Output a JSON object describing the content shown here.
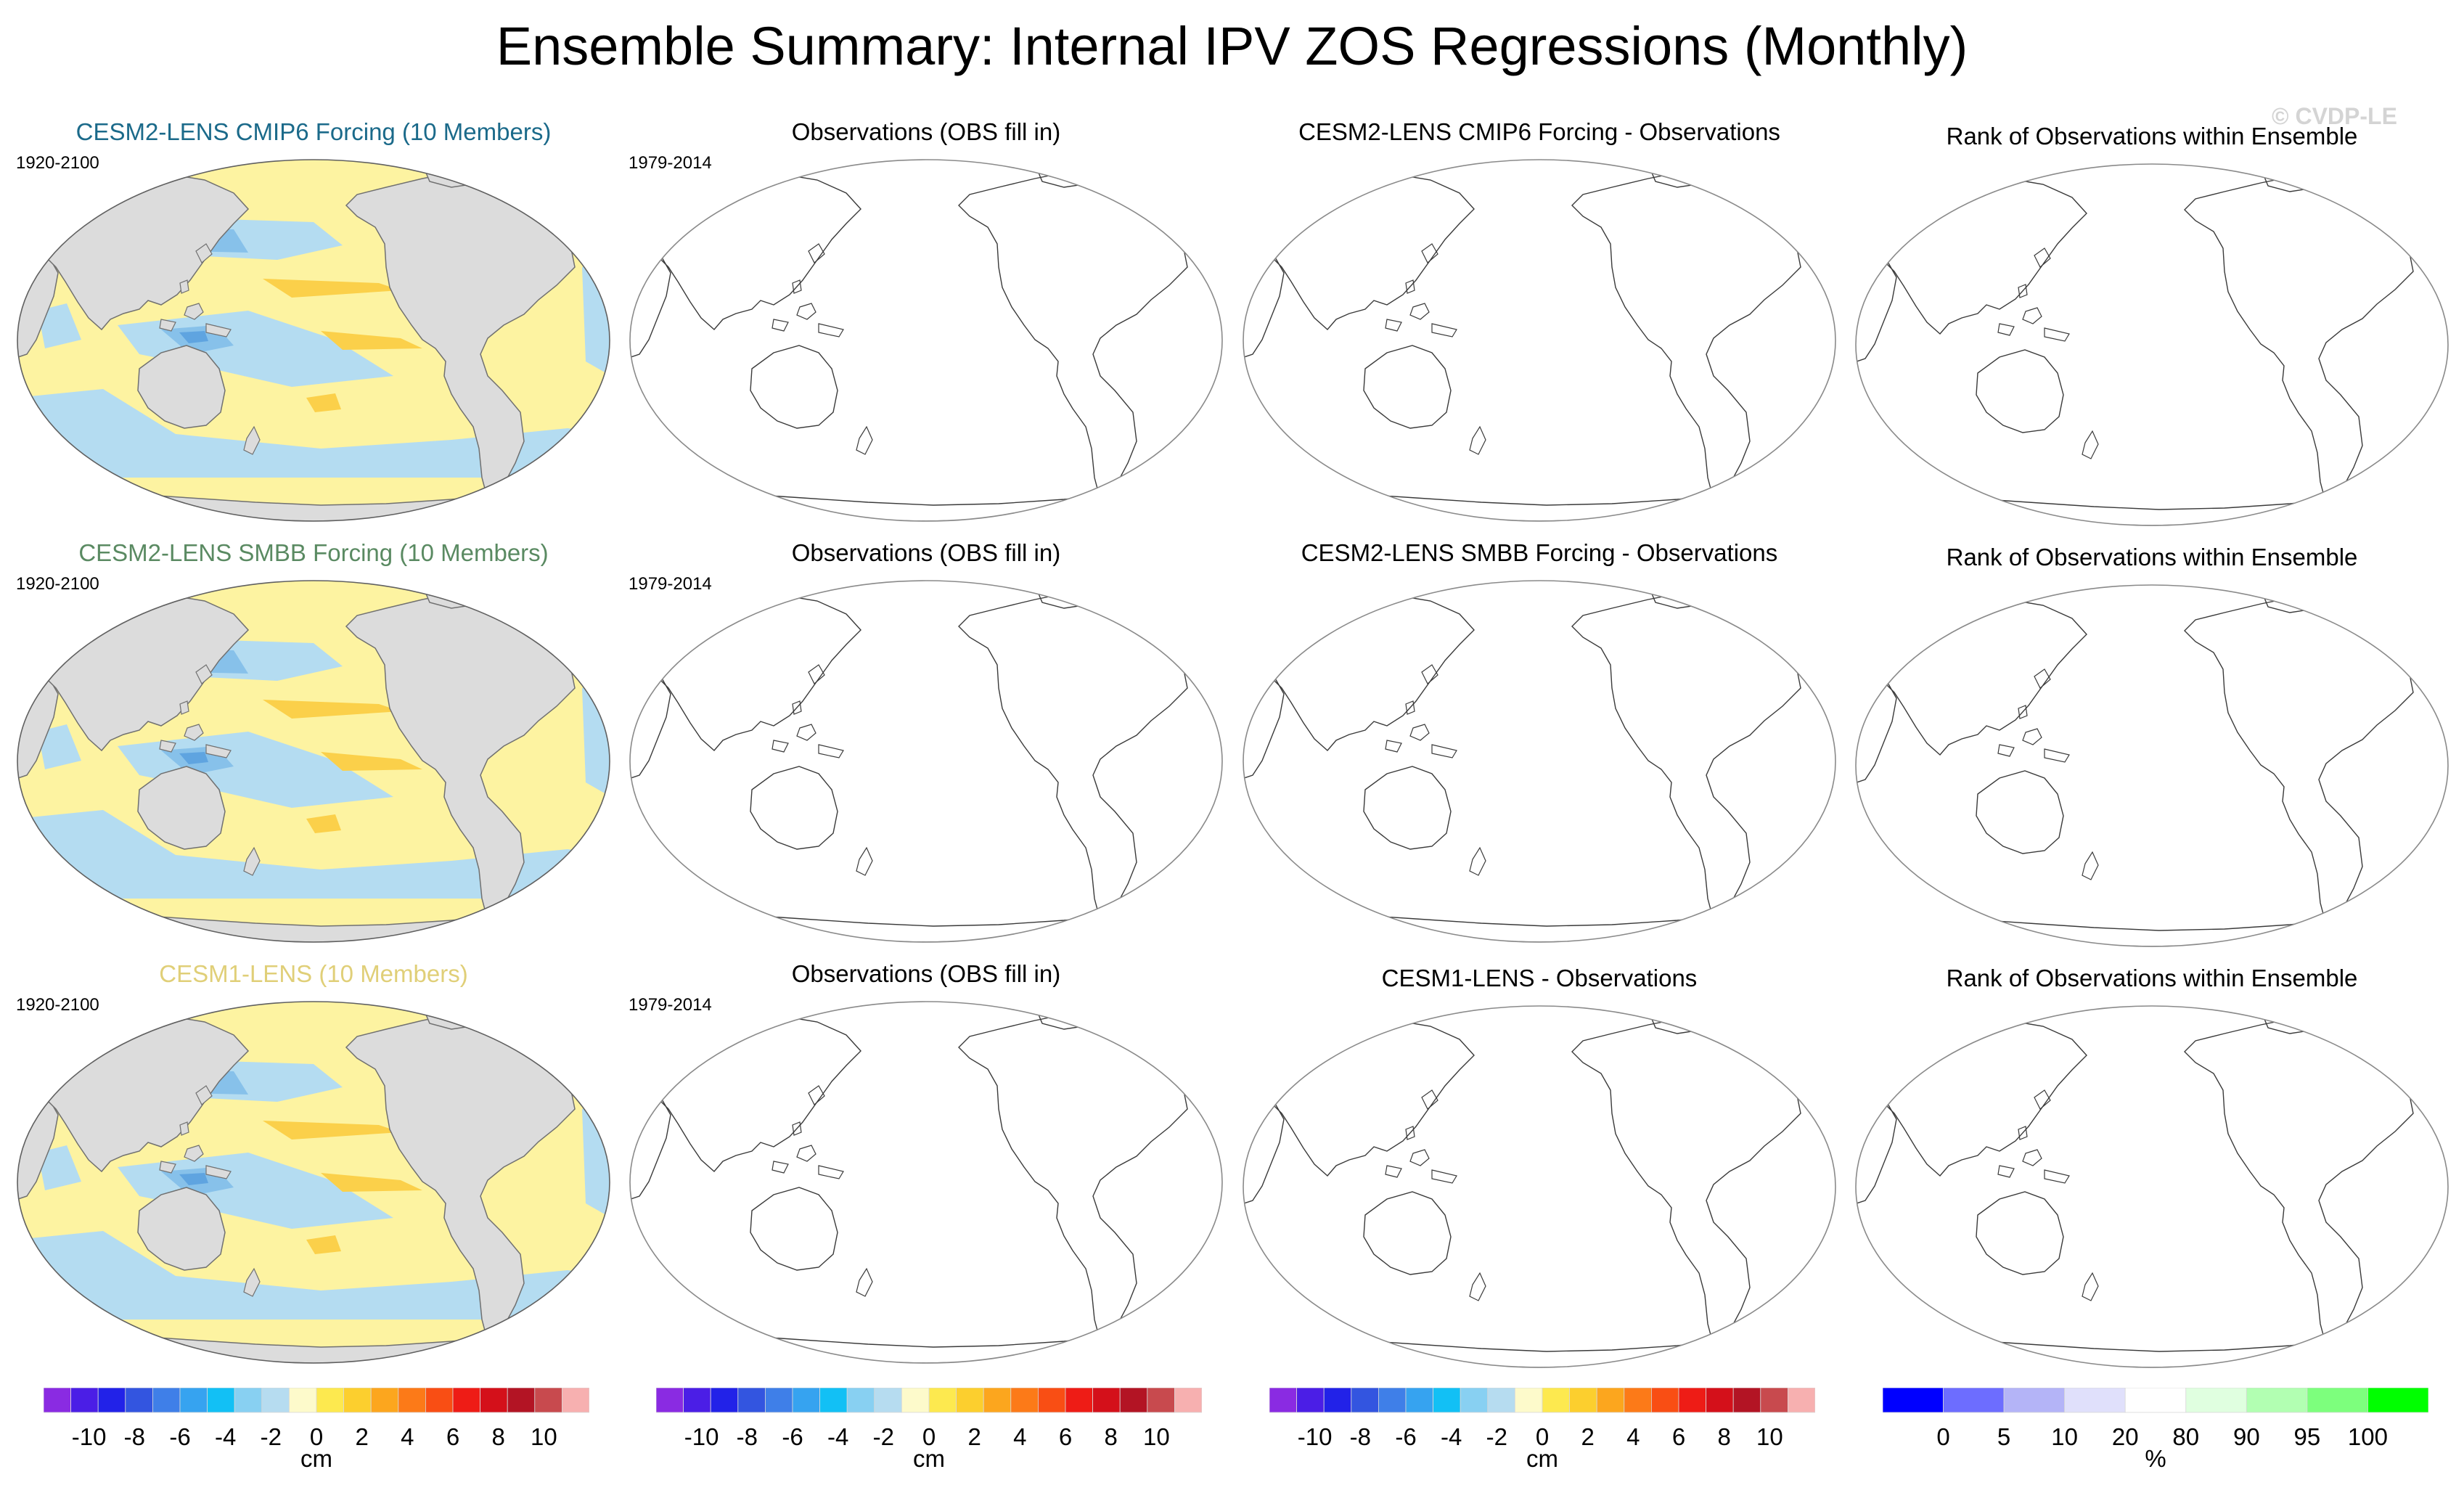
{
  "title": "Ensemble Summary: Internal IPV ZOS Regressions (Monthly)",
  "watermark": "© CVDP-LE",
  "colors": {
    "ocean_yellow": "#fdf3a1",
    "ocean_blue_light": "#b4dcf1",
    "ocean_blue_mid": "#87c1ea",
    "ocean_blue_dark": "#5fa4e0",
    "orange": "#fbd04a",
    "land": "#dcdcdc"
  },
  "rows": [
    {
      "model_title": "CESM2-LENS CMIP6 Forcing (10 Members)",
      "model_title_color": "#1b6a8a",
      "model_period": "1920-2100",
      "obs_title": "Observations (OBS fill in)",
      "obs_period": "1979-2014",
      "diff_title": "CESM2-LENS CMIP6 Forcing - Observations",
      "rank_title": "Rank of Observations within Ensemble"
    },
    {
      "model_title": "CESM2-LENS SMBB Forcing (10 Members)",
      "model_title_color": "#5a8a62",
      "model_period": "1920-2100",
      "obs_title": "Observations (OBS fill in)",
      "obs_period": "1979-2014",
      "diff_title": "CESM2-LENS SMBB Forcing - Observations",
      "rank_title": "Rank of Observations within Ensemble"
    },
    {
      "model_title": "CESM1-LENS (10 Members)",
      "model_title_color": "#e0cf78",
      "model_period": "1920-2100",
      "obs_title": "Observations (OBS fill in)",
      "obs_period": "1979-2014",
      "diff_title": "CESM1-LENS - Observations",
      "rank_title": "Rank of Observations within Ensemble"
    }
  ],
  "colorbars": {
    "zos": {
      "unit": "cm",
      "colors": [
        "#8a2be2",
        "#4b1ee6",
        "#2222e8",
        "#3355e0",
        "#3f7fe8",
        "#36a3f0",
        "#12c0f5",
        "#88d0f2",
        "#b6dcf0",
        "#fdfacb",
        "#fde94f",
        "#fccf2e",
        "#fca61e",
        "#fc7a18",
        "#f94e14",
        "#ee1c16",
        "#d4101a",
        "#b31424",
        "#c84a4e",
        "#f7b0b0"
      ],
      "ticks": [
        "-10",
        "-8",
        "-6",
        "-4",
        "-2",
        "0",
        "2",
        "4",
        "6",
        "8",
        "10"
      ]
    },
    "rank": {
      "unit": "%",
      "colors": [
        "#0000ff",
        "#6d6dff",
        "#b4b4f7",
        "#e0e0fb",
        "#ffffff",
        "#e0ffe0",
        "#b2ffb2",
        "#7dff7d",
        "#00ff00"
      ],
      "ticks": [
        "0",
        "5",
        "10",
        "20",
        "80",
        "90",
        "95",
        "100"
      ]
    }
  }
}
